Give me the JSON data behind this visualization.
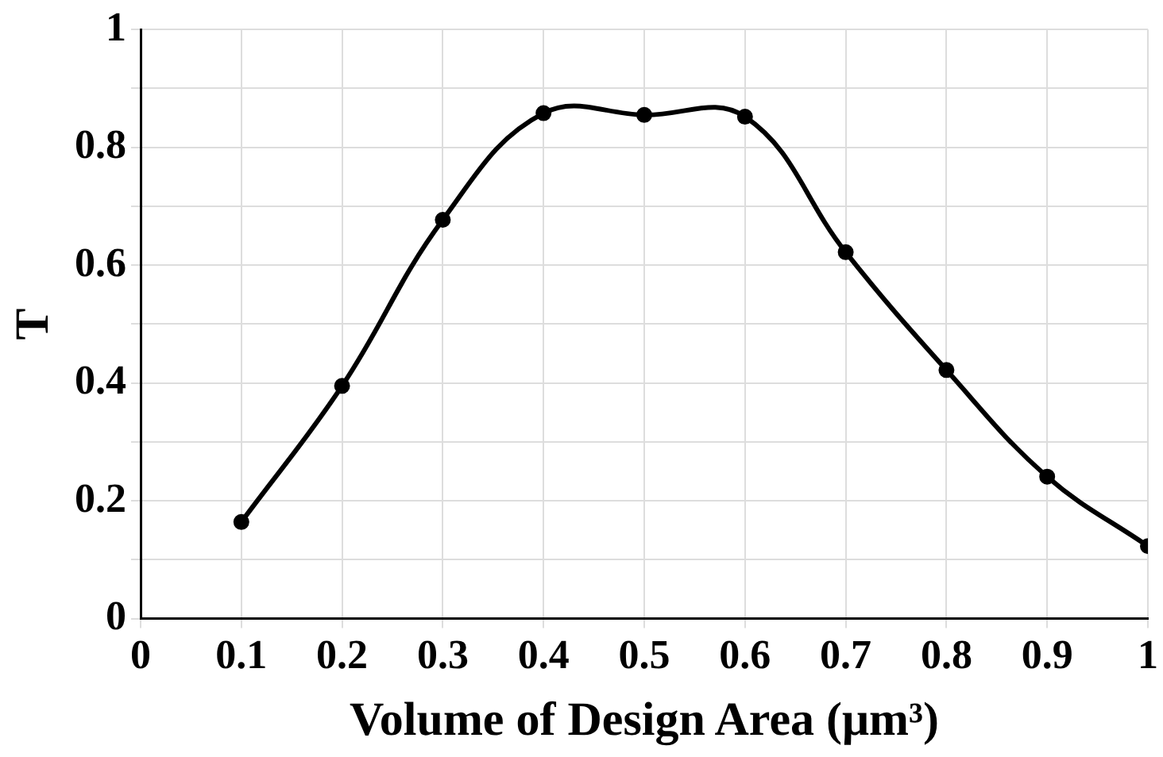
{
  "chart_data": {
    "type": "line",
    "xlabel": "Volume of Design Area (μm³)",
    "ylabel": "T",
    "x": [
      0.1,
      0.2,
      0.3,
      0.4,
      0.5,
      0.6,
      0.7,
      0.8,
      0.9,
      1
    ],
    "series": [
      {
        "color": "#000000",
        "values": [
          0.164,
          0.395,
          0.677,
          0.858,
          0.855,
          0.852,
          0.622,
          0.422,
          0.241,
          0.123
        ]
      }
    ],
    "xlim": [
      0,
      1
    ],
    "xticks": [
      0,
      0.1,
      0.2,
      0.3,
      0.4,
      0.5,
      0.6,
      0.7,
      0.8,
      0.9,
      1
    ],
    "ylim": [
      0,
      1
    ],
    "yticks": [
      0,
      {
        "value": 0.1,
        "label": null
      },
      0.2,
      {
        "value": 0.3,
        "label": null
      },
      0.4,
      {
        "value": 0.5,
        "label": null
      },
      0.6,
      {
        "value": 0.7,
        "label": null
      },
      0.8,
      {
        "value": 0.9,
        "label": null
      },
      1
    ],
    "grid": true,
    "marker": "circle",
    "line_style": "solid",
    "legend": false
  }
}
